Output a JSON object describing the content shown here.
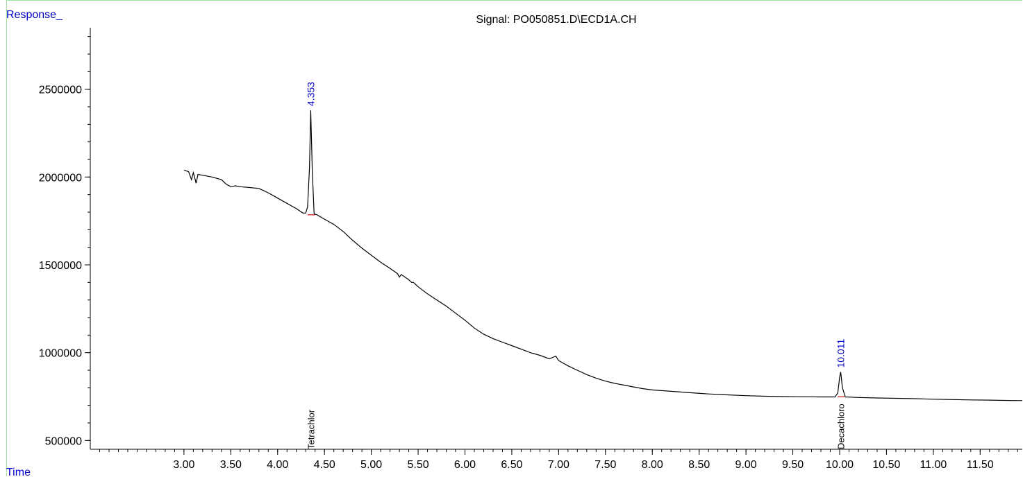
{
  "chart_data": {
    "type": "line",
    "title": "Signal: PO050851.D\\ECD1A.CH",
    "ylabel": "Response_",
    "xlabel": "Time",
    "xlim": [
      2.0,
      11.95
    ],
    "ylim": [
      450000,
      2850000
    ],
    "x_ticks": [
      3.0,
      3.5,
      4.0,
      4.5,
      5.0,
      5.5,
      6.0,
      6.5,
      7.0,
      7.5,
      8.0,
      8.5,
      9.0,
      9.5,
      10.0,
      10.5,
      11.0,
      11.5
    ],
    "x_tick_labels": [
      "3.00",
      "3.50",
      "4.00",
      "4.50",
      "5.00",
      "5.50",
      "6.00",
      "6.50",
      "7.00",
      "7.50",
      "8.00",
      "8.50",
      "9.00",
      "9.50",
      "10.00",
      "10.50",
      "11.00",
      "11.50"
    ],
    "y_ticks": [
      500000,
      1000000,
      1500000,
      2000000,
      2500000
    ],
    "y_tick_labels": [
      "500000",
      "1000000",
      "1500000",
      "2000000",
      "2500000"
    ],
    "grid": false,
    "colors": {
      "trace": "#000000",
      "peak_label": "#0000cc",
      "axis_label": "#0000cc",
      "baseline": "#cc0000",
      "frame": "#9be79b"
    },
    "series": [
      {
        "x": [
          3.0,
          3.05,
          3.08,
          3.1,
          3.13,
          3.15,
          3.2,
          3.3,
          3.4,
          3.45,
          3.5,
          3.55,
          3.6,
          3.7,
          3.8,
          3.9,
          4.0,
          4.1,
          4.2,
          4.27,
          4.3,
          4.32,
          4.34,
          4.353,
          4.37,
          4.39,
          4.42,
          4.5,
          4.6,
          4.7,
          4.8,
          4.9,
          5.0,
          5.1,
          5.2,
          5.28,
          5.3,
          5.32,
          5.4,
          5.43,
          5.45,
          5.5,
          5.6,
          5.7,
          5.8,
          5.9,
          6.0,
          6.1,
          6.2,
          6.3,
          6.4,
          6.5,
          6.6,
          6.7,
          6.8,
          6.9,
          6.97,
          7.0,
          7.1,
          7.2,
          7.3,
          7.4,
          7.5,
          7.6,
          7.7,
          7.8,
          7.9,
          8.0,
          8.2,
          8.4,
          8.6,
          8.8,
          9.0,
          9.2,
          9.4,
          9.6,
          9.8,
          9.95,
          9.98,
          10.0,
          10.011,
          10.03,
          10.06,
          10.2,
          10.4,
          10.6,
          10.8,
          11.0,
          11.2,
          11.4,
          11.6,
          11.8,
          11.95
        ],
        "y": [
          2040000,
          2030000,
          1985000,
          2025000,
          1965000,
          2015000,
          2010000,
          2000000,
          1985000,
          1960000,
          1945000,
          1950000,
          1945000,
          1940000,
          1935000,
          1910000,
          1880000,
          1850000,
          1820000,
          1795000,
          1795000,
          1830000,
          2050000,
          2380000,
          2030000,
          1790000,
          1785000,
          1760000,
          1730000,
          1690000,
          1640000,
          1595000,
          1555000,
          1515000,
          1480000,
          1450000,
          1430000,
          1445000,
          1415000,
          1400000,
          1400000,
          1375000,
          1335000,
          1300000,
          1265000,
          1225000,
          1185000,
          1140000,
          1105000,
          1080000,
          1060000,
          1040000,
          1020000,
          1000000,
          985000,
          965000,
          980000,
          955000,
          925000,
          900000,
          875000,
          855000,
          838000,
          825000,
          815000,
          805000,
          795000,
          788000,
          780000,
          772000,
          765000,
          760000,
          755000,
          752000,
          750000,
          749000,
          748000,
          748000,
          770000,
          860000,
          890000,
          800000,
          748000,
          745000,
          742000,
          740000,
          738000,
          735000,
          733000,
          731000,
          730000,
          728000,
          727000
        ]
      }
    ],
    "baseline_segments": [
      {
        "x": [
          4.32,
          4.4
        ],
        "y": [
          1785000,
          1785000
        ]
      },
      {
        "x": [
          9.98,
          10.05
        ],
        "y": [
          749000,
          749000
        ]
      }
    ],
    "peaks": [
      {
        "time_label": "4.353",
        "x": 4.353,
        "y": 2380000,
        "compound": "Tetrachlor"
      },
      {
        "time_label": "10.011",
        "x": 10.011,
        "y": 890000,
        "compound": "Decachloro"
      }
    ]
  }
}
